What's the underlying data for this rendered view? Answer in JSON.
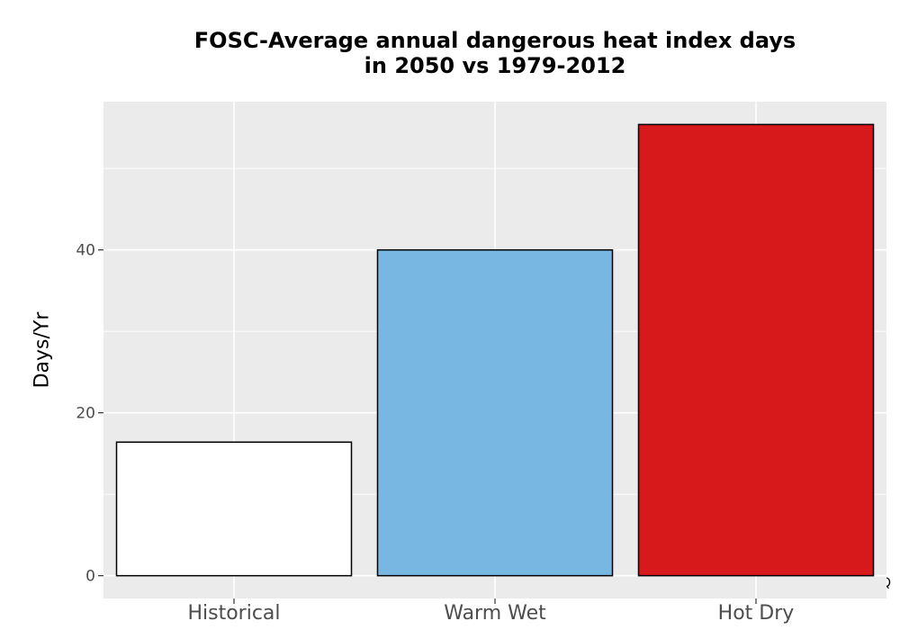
{
  "chart_data": {
    "type": "bar",
    "title_lines": [
      "FOSC-Average annual dangerous heat index days",
      "in 2050 vs 1979-2012"
    ],
    "ylabel": "Days/Yr",
    "xlabel": "",
    "categories": [
      "Historical",
      "Warm Wet",
      "Hot Dry"
    ],
    "values": [
      16.4,
      40.0,
      55.4
    ],
    "bar_colors": [
      "#ffffff",
      "#78b7e1",
      "#d7191c"
    ],
    "bar_outline": "#000000",
    "ylim": [
      -2.8,
      58.2
    ],
    "yticks": [
      0,
      20,
      40
    ],
    "ytick_labels": [
      "0",
      "20",
      "40"
    ],
    "grid": true,
    "panel_background": "#ebebeb",
    "grid_color": "#ffffff",
    "corner_text": "Q"
  }
}
